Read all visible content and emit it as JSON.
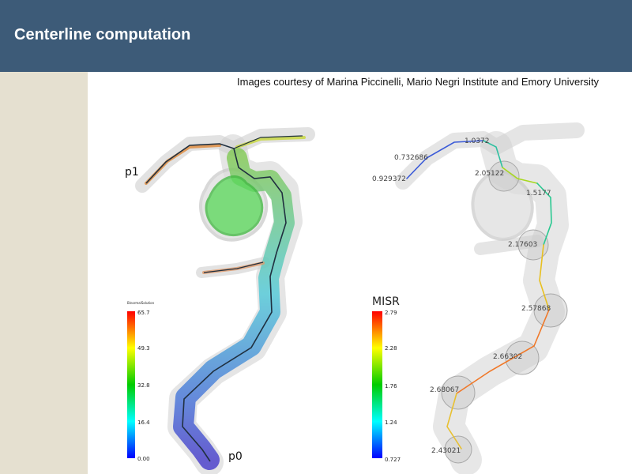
{
  "slide": {
    "title": "Centerline computation",
    "credit": "Images courtesy of Marina Piccinelli, Mario Negri Institute and Emory University"
  },
  "colors": {
    "header": "#3d5b78",
    "sidebar": "#e5e0d0"
  },
  "left_panel": {
    "endpoint_top": "p1",
    "endpoint_bottom": "p0",
    "colorbar": {
      "title": "BinormalSolution",
      "ticks": [
        "65.7",
        "49.3",
        "32.8",
        "16.4",
        "0.00"
      ]
    }
  },
  "right_panel": {
    "colorbar": {
      "title": "MISR",
      "ticks": [
        "2.79",
        "2.28",
        "1.76",
        "1.24",
        "0.727"
      ]
    },
    "radius_labels": [
      "1.0372",
      "0.732686",
      "0.929372",
      "2.05122",
      "1.5177",
      "2.17603",
      "2.57868",
      "2.66302",
      "2.68067",
      "2.43021"
    ]
  }
}
